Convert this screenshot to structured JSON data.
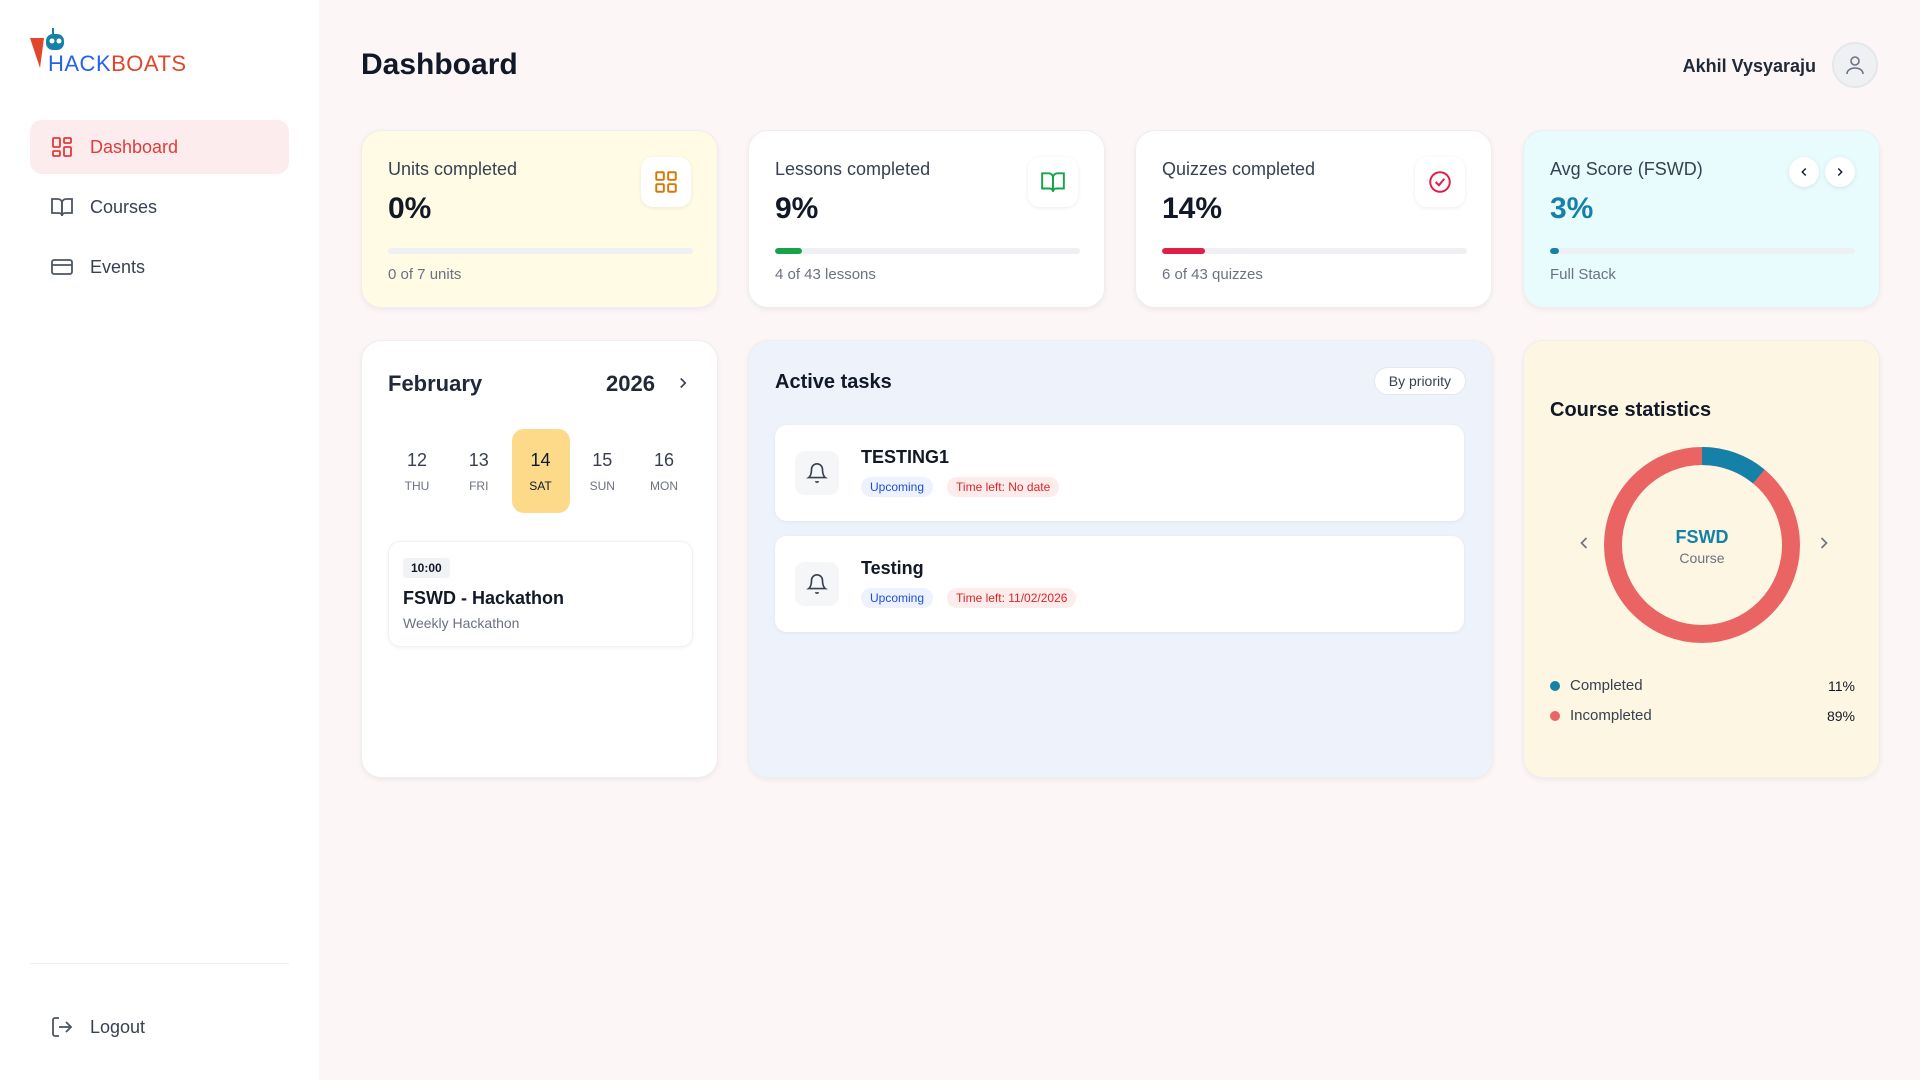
{
  "brand": {
    "logo_hack": "HACK",
    "logo_boats": "BOATS"
  },
  "sidebar": {
    "items": [
      {
        "label": "Dashboard",
        "icon": "grid-icon",
        "active": true
      },
      {
        "label": "Courses",
        "icon": "book-icon",
        "active": false
      },
      {
        "label": "Events",
        "icon": "card-icon",
        "active": false
      }
    ],
    "logout_label": "Logout"
  },
  "header": {
    "title": "Dashboard",
    "user_name": "Akhil Vysyaraju"
  },
  "stats": {
    "units": {
      "label": "Units completed",
      "value": "0%",
      "progress": 0,
      "sub": "0 of 7 units",
      "bg": "#fffbe5",
      "icon": "grid-icon",
      "accent": "#d97706"
    },
    "lessons": {
      "label": "Lessons completed",
      "value": "9%",
      "progress": 9,
      "sub": "4 of 43 lessons",
      "bg": "#ffffff",
      "icon": "book-icon",
      "accent": "#16a34a"
    },
    "quizzes": {
      "label": "Quizzes completed",
      "value": "14%",
      "progress": 14,
      "sub": "6 of 43 quizzes",
      "bg": "#ffffff",
      "icon": "check-circle-icon",
      "accent": "#e11d48"
    },
    "avg": {
      "label": "Avg Score (FSWD)",
      "value": "3%",
      "progress": 3,
      "sub": "Full Stack",
      "bg": "#e8fbfd",
      "accent": "#1581a8"
    }
  },
  "calendar": {
    "month": "February",
    "year": "2026",
    "days": [
      {
        "num": "12",
        "dow": "THU",
        "selected": false
      },
      {
        "num": "13",
        "dow": "FRI",
        "selected": false
      },
      {
        "num": "14",
        "dow": "SAT",
        "selected": true
      },
      {
        "num": "15",
        "dow": "SUN",
        "selected": false
      },
      {
        "num": "16",
        "dow": "MON",
        "selected": false
      }
    ],
    "event": {
      "time": "10:00",
      "title": "FSWD - Hackathon",
      "desc": "Weekly Hackathon"
    }
  },
  "tasks": {
    "title": "Active tasks",
    "sort_label": "By priority",
    "items": [
      {
        "name": "TESTING1",
        "status": "Upcoming",
        "time_left": "Time left: No date"
      },
      {
        "name": "Testing",
        "status": "Upcoming",
        "time_left": "Time left: 11/02/2026"
      }
    ]
  },
  "course_stats": {
    "title": "Course statistics",
    "course": "FSWD",
    "course_sub": "Course",
    "legend": [
      {
        "label": "Completed",
        "pct": "11%",
        "value": 11,
        "color": "#1581a8"
      },
      {
        "label": "Incompleted",
        "pct": "89%",
        "value": 89,
        "color": "#ea6464"
      }
    ]
  }
}
